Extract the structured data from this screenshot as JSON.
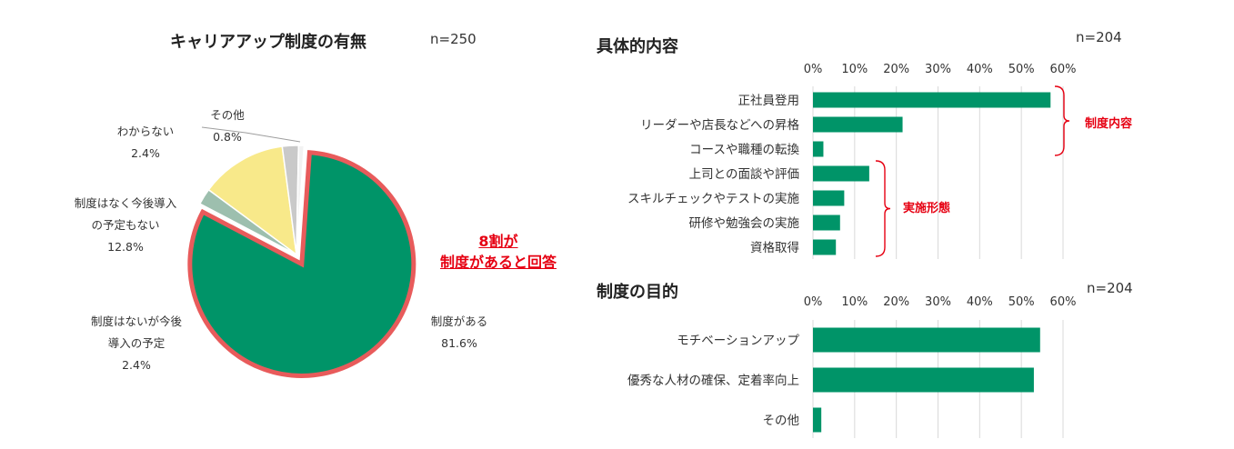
{
  "colors": {
    "green": "#009468",
    "yellow": "#f8e98a",
    "sage": "#9dbfae",
    "gray": "#c9c9c9",
    "white": "#f2f2f2",
    "highlight": "#e85b5b",
    "red": "#e60012",
    "grid": "#d9d9d9"
  },
  "pie": {
    "title": "キャリアアップ制度の有無",
    "n_label": "n=250",
    "callout": [
      "8割が",
      "制度があると回答"
    ],
    "labels": [
      {
        "lines": [
          "制度がある",
          "81.6%"
        ]
      },
      {
        "lines": [
          "制度はないが今後",
          "導入の予定",
          "2.4%"
        ]
      },
      {
        "lines": [
          "制度はなく今後導入",
          "の予定もない",
          "12.8%"
        ]
      },
      {
        "lines": [
          "わからない",
          "2.4%"
        ]
      },
      {
        "lines": [
          "その他",
          "0.8%"
        ]
      }
    ]
  },
  "content": {
    "title": "具体的内容",
    "n_label": "n=204",
    "group_labels": [
      "制度内容",
      "実施形態"
    ]
  },
  "purpose": {
    "title": "制度の目的",
    "n_label": "n=204"
  },
  "chart_data": [
    {
      "type": "pie",
      "title": "キャリアアップ制度の有無",
      "categories": [
        "制度がある",
        "制度はないが今後導入の予定",
        "制度はなく今後導入の予定もない",
        "わからない",
        "その他"
      ],
      "values": [
        81.6,
        2.4,
        12.8,
        2.4,
        0.8
      ],
      "colors": [
        "#009468",
        "#9dbfae",
        "#f8e98a",
        "#c9c9c9",
        "#f2f2f2"
      ],
      "n": "n=250"
    },
    {
      "type": "bar",
      "orientation": "horizontal",
      "title": "具体的内容",
      "categories": [
        "正社員登用",
        "リーダーや店長などへの昇格",
        "コースや職種の転換",
        "上司との面談や評価",
        "スキルチェックやテストの実施",
        "研修や勉強会の実施",
        "資格取得"
      ],
      "values": [
        57,
        21.5,
        2.5,
        13.5,
        7.5,
        6.5,
        5.5
      ],
      "xlim": [
        0,
        60
      ],
      "ticks": [
        "0%",
        "10%",
        "20%",
        "30%",
        "40%",
        "50%",
        "60%"
      ],
      "groups": [
        {
          "label": "制度内容",
          "items": [
            0,
            1,
            2
          ]
        },
        {
          "label": "実施形態",
          "items": [
            3,
            4,
            5,
            6
          ]
        }
      ],
      "grid": true,
      "n": "n=204"
    },
    {
      "type": "bar",
      "orientation": "horizontal",
      "title": "制度の目的",
      "categories": [
        "モチベーションアップ",
        "優秀な人材の確保、定着率向上",
        "その他"
      ],
      "values": [
        54.5,
        53,
        2
      ],
      "xlim": [
        0,
        60
      ],
      "ticks": [
        "0%",
        "10%",
        "20%",
        "30%",
        "40%",
        "50%",
        "60%"
      ],
      "grid": true,
      "n": "n=204"
    }
  ]
}
